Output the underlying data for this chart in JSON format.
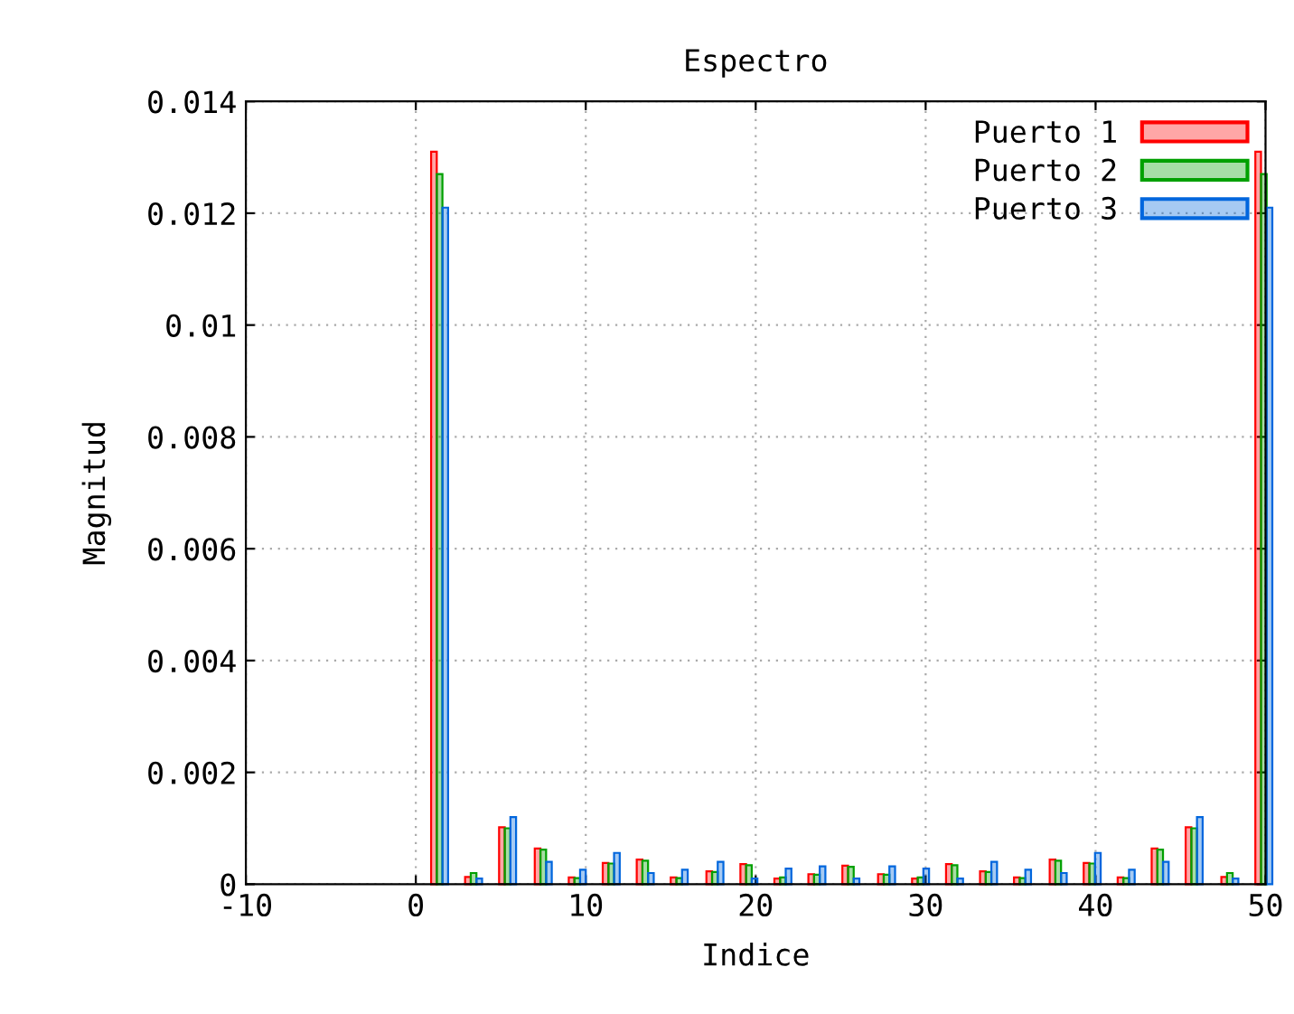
{
  "chart_data": {
    "type": "bar",
    "title": "Espectro",
    "xlabel": "Indice",
    "ylabel": "Magnitud",
    "x": [
      1.4,
      3.4,
      5.4,
      7.5,
      9.5,
      11.5,
      13.5,
      15.5,
      17.6,
      19.6,
      21.6,
      23.6,
      25.6,
      27.7,
      29.7,
      31.7,
      33.7,
      35.7,
      37.8,
      39.8,
      41.8,
      43.8,
      45.8,
      47.9,
      49.9
    ],
    "series": [
      {
        "name": "Puerto 1",
        "color": "#ff0000",
        "values": [
          0.0131,
          0.00013,
          0.00102,
          0.00064,
          0.00012,
          0.00038,
          0.00044,
          0.00012,
          0.00023,
          0.00036,
          0.0001,
          0.00018,
          0.00033,
          0.00018,
          0.0001,
          0.00036,
          0.00023,
          0.00012,
          0.00044,
          0.00038,
          0.00012,
          0.00064,
          0.00102,
          0.00013,
          0.0131
        ]
      },
      {
        "name": "Puerto 2",
        "color": "#00a000",
        "values": [
          0.0127,
          0.0002,
          0.001,
          0.00062,
          0.00011,
          0.00037,
          0.00042,
          0.00011,
          0.00022,
          0.00034,
          0.00012,
          0.00017,
          0.00031,
          0.00017,
          0.00012,
          0.00034,
          0.00022,
          0.00011,
          0.00042,
          0.00037,
          0.00011,
          0.00062,
          0.001,
          0.0002,
          0.0127
        ]
      },
      {
        "name": "Puerto 3",
        "color": "#0066dd",
        "values": [
          0.0121,
          0.0001,
          0.0012,
          0.0004,
          0.00026,
          0.00056,
          0.0002,
          0.00026,
          0.0004,
          0.0001,
          0.00028,
          0.00032,
          0.0001,
          0.00032,
          0.00028,
          0.0001,
          0.0004,
          0.00026,
          0.0002,
          0.00056,
          0.00026,
          0.0004,
          0.0012,
          0.0001,
          0.0121
        ]
      }
    ],
    "xlim": [
      -10,
      50
    ],
    "xticks": [
      -10,
      0,
      10,
      20,
      30,
      40,
      50
    ],
    "ylim": [
      0,
      0.014
    ],
    "yticks": [
      0,
      0.002,
      0.004,
      0.006,
      0.008,
      0.01,
      0.012,
      0.014
    ],
    "grid": true,
    "legend": "top right"
  }
}
